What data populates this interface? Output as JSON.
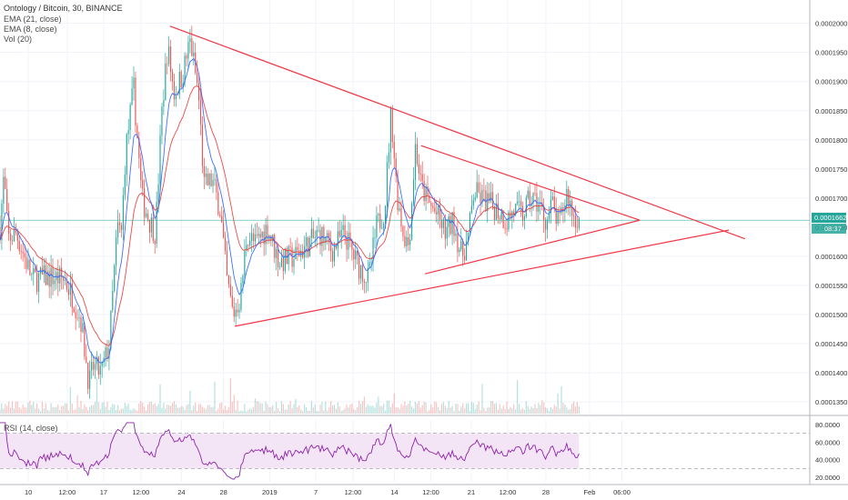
{
  "header": {
    "symbol_line": "Ontology / Bitcoin, 30, BINANCE",
    "indicators": [
      "EMA (21, close)",
      "EMA (8, close)",
      "Vol (20)"
    ],
    "rsi_label": "RSI (14, close)"
  },
  "price_tag": {
    "price": "0.0001662",
    "countdown": "08:37"
  },
  "colors": {
    "up": "#26a69a",
    "down": "#ef5350",
    "ema_fast": "#2962ff",
    "ema_slow": "#e53935",
    "trendline": "#f23645",
    "rsi_line": "#8e24aa",
    "rsi_band": "#f3e5f5",
    "price_line": "#26a69a",
    "grid": "#f0f3fa"
  },
  "chart_data": {
    "type": "candlestick",
    "price_axis": {
      "min": 0.000133,
      "max": 0.000204,
      "ticks": [
        "0.0002000",
        "0.0001950",
        "0.0001900",
        "0.0001850",
        "0.0001800",
        "0.0001750",
        "0.0001700",
        "0.0001650",
        "0.0001600",
        "0.0001550",
        "0.0001500",
        "0.0001450",
        "0.0001400",
        "0.0001350"
      ]
    },
    "rsi_axis": {
      "min": 15,
      "max": 85,
      "ticks": [
        "80.0000",
        "60.0000",
        "40.0000",
        "20.0000"
      ],
      "band": [
        30,
        70
      ]
    },
    "time_axis": {
      "labels": [
        "10",
        "12:00",
        "17",
        "12:00",
        "24",
        "28",
        "2019",
        "7",
        "12:00",
        "14",
        "12:00",
        "21",
        "12:00",
        "28",
        "Feb",
        "06:00"
      ],
      "positions": [
        0.035,
        0.083,
        0.128,
        0.174,
        0.224,
        0.276,
        0.333,
        0.39,
        0.436,
        0.487,
        0.532,
        0.582,
        0.627,
        0.674,
        0.728,
        0.768
      ],
      "current_index_fraction": 0.635
    },
    "current_price": 0.0001662,
    "series_anchors": [
      [
        0.0,
        0.000165
      ],
      [
        0.005,
        0.000174
      ],
      [
        0.01,
        0.000163
      ],
      [
        0.02,
        0.000164
      ],
      [
        0.04,
        0.000156
      ],
      [
        0.06,
        0.0001565
      ],
      [
        0.08,
        0.000156
      ],
      [
        0.09,
        0.000153
      ],
      [
        0.1,
        0.000149
      ],
      [
        0.11,
        0.000138
      ],
      [
        0.115,
        0.000141
      ],
      [
        0.125,
        0.00014
      ],
      [
        0.135,
        0.000145
      ],
      [
        0.145,
        0.000165
      ],
      [
        0.15,
        0.000164
      ],
      [
        0.155,
        0.000178
      ],
      [
        0.165,
        0.000189
      ],
      [
        0.175,
        0.00017
      ],
      [
        0.185,
        0.000166
      ],
      [
        0.192,
        0.000164
      ],
      [
        0.2,
        0.000185
      ],
      [
        0.207,
        0.000196
      ],
      [
        0.215,
        0.000188
      ],
      [
        0.225,
        0.000191
      ],
      [
        0.235,
        0.000197
      ],
      [
        0.245,
        0.000188
      ],
      [
        0.252,
        0.000172
      ],
      [
        0.262,
        0.000173
      ],
      [
        0.272,
        0.000168
      ],
      [
        0.28,
        0.000156
      ],
      [
        0.288,
        0.00015
      ],
      [
        0.297,
        0.000153
      ],
      [
        0.305,
        0.000164
      ],
      [
        0.315,
        0.000162
      ],
      [
        0.33,
        0.000165
      ],
      [
        0.345,
        0.000159
      ],
      [
        0.365,
        0.00016
      ],
      [
        0.38,
        0.000162
      ],
      [
        0.395,
        0.000164
      ],
      [
        0.41,
        0.000161
      ],
      [
        0.425,
        0.000164
      ],
      [
        0.44,
        0.000159
      ],
      [
        0.455,
        0.000156
      ],
      [
        0.465,
        0.000165
      ],
      [
        0.475,
        0.000168
      ],
      [
        0.483,
        0.000185
      ],
      [
        0.49,
        0.000171
      ],
      [
        0.498,
        0.000164
      ],
      [
        0.505,
        0.000162
      ],
      [
        0.513,
        0.000179
      ],
      [
        0.52,
        0.000172
      ],
      [
        0.53,
        0.000169
      ],
      [
        0.54,
        0.000167
      ],
      [
        0.55,
        0.000164
      ],
      [
        0.56,
        0.000166
      ],
      [
        0.57,
        0.00016
      ],
      [
        0.578,
        0.000163
      ],
      [
        0.585,
        0.000171
      ],
      [
        0.595,
        0.00017
      ],
      [
        0.605,
        0.000169
      ],
      [
        0.615,
        0.000168
      ],
      [
        0.625,
        0.000166
      ],
      [
        0.635,
        0.000168
      ],
      [
        0.645,
        0.000167
      ],
      [
        0.655,
        0.00017
      ],
      [
        0.665,
        0.000169
      ],
      [
        0.675,
        0.000166
      ],
      [
        0.682,
        0.000169
      ],
      [
        0.69,
        0.000165
      ],
      [
        0.7,
        0.000171
      ],
      [
        0.708,
        0.000167
      ],
      [
        0.715,
        0.0001662
      ]
    ],
    "trendlines": [
      {
        "name": "outer-upper",
        "from": [
          0.21,
          0.0001995
        ],
        "to": [
          0.92,
          0.000163
        ]
      },
      {
        "name": "outer-lower",
        "from": [
          0.29,
          0.000148
        ],
        "to": [
          0.9,
          0.0001645
        ]
      },
      {
        "name": "inner-upper",
        "from": [
          0.52,
          0.000179
        ],
        "to": [
          0.79,
          0.0001662
        ]
      },
      {
        "name": "inner-lower",
        "from": [
          0.525,
          0.000157
        ],
        "to": [
          0.79,
          0.0001662
        ]
      }
    ]
  }
}
